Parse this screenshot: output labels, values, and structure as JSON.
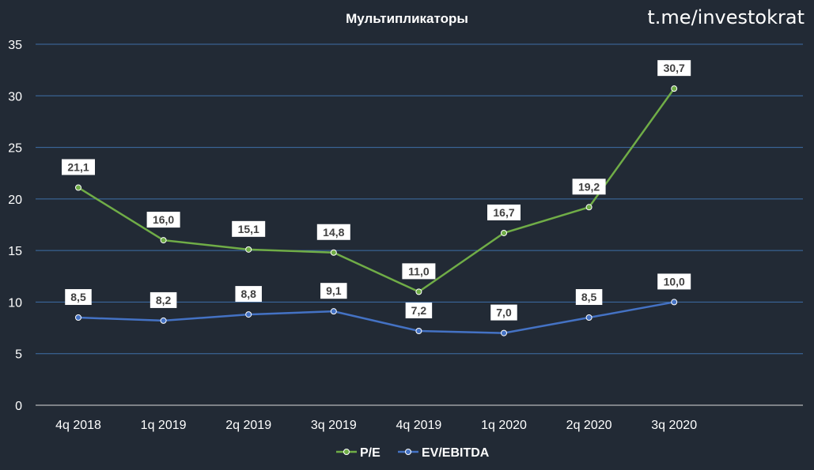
{
  "chart_data": {
    "type": "line",
    "title": "Мультипликаторы",
    "watermark": "t.me/investokrat",
    "categories": [
      "4q 2018",
      "1q 2019",
      "2q 2019",
      "3q 2019",
      "4q 2019",
      "1q 2020",
      "2q 2020",
      "3q 2020"
    ],
    "yticks": [
      "0",
      "5",
      "10",
      "15",
      "20",
      "25",
      "30",
      "35"
    ],
    "ylim": [
      0,
      35
    ],
    "grid": true,
    "legend_position": "bottom",
    "series": [
      {
        "name": "P/E",
        "color": "#70ad47",
        "values": [
          21.1,
          16.0,
          15.1,
          14.8,
          11.0,
          16.7,
          19.2,
          30.7
        ],
        "labels": [
          "21,1",
          "16,0",
          "15,1",
          "14,8",
          "11,0",
          "16,7",
          "19,2",
          "30,7"
        ]
      },
      {
        "name": "EV/EBITDA",
        "color": "#4472c4",
        "values": [
          8.5,
          8.2,
          8.8,
          9.1,
          7.2,
          7.0,
          8.5,
          10.0
        ],
        "labels": [
          "8,5",
          "8,2",
          "8,8",
          "9,1",
          "7,2",
          "7,0",
          "8,5",
          "10,0"
        ]
      }
    ]
  }
}
